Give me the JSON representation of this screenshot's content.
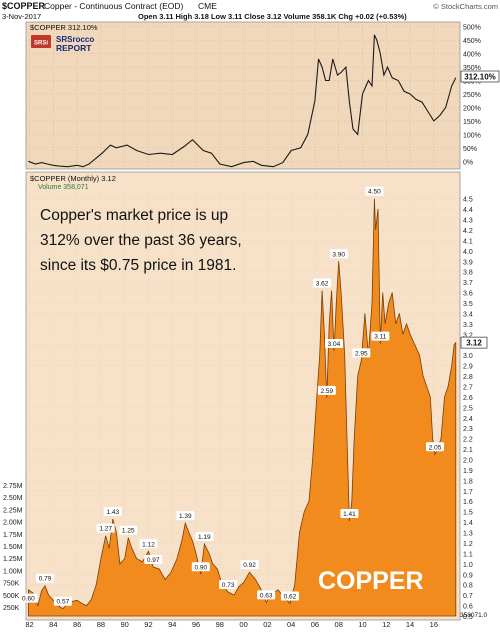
{
  "header": {
    "symbol": "$COPPER",
    "title": "Copper - Continuous Contract (EOD)",
    "exchange": "CME",
    "date": "3-Nov-2017",
    "ohlc": "Open 3.11  High 3.18  Low 3.11  Close 3.12  Volume 358.1K  Chg +0.02 (+0.53%)",
    "source": "© StockCharts.com"
  },
  "logo": {
    "abbr": "SRSi",
    "line1": "SRSrocco",
    "line2": "REPORT"
  },
  "annotation": {
    "line1": "Copper's market price is up",
    "line2": "312% over the past 36 years,",
    "line3": "since its $0.75 price in 1981."
  },
  "watermark": "COPPER",
  "colors": {
    "panel_top": "#f1d8bb",
    "panel_bottom": "#f7e2c9",
    "fill": "#f28b1e",
    "volume": "#d6690f",
    "line": "#1a1a1a"
  },
  "chart_data": [
    {
      "type": "line",
      "panel": "top",
      "legend": "$COPPER 312.10%",
      "unit": "percent change",
      "last_label": "312.10%",
      "y_ticks": [
        "500%",
        "450%",
        "400%",
        "350%",
        "300%",
        "250%",
        "200%",
        "150%",
        "100%",
        "50%",
        "0%"
      ],
      "ylim": [
        -25,
        510
      ],
      "x": [
        1981.9,
        1982.5,
        1983.0,
        1983.5,
        1984.0,
        1984.5,
        1985.2,
        1986.0,
        1986.5,
        1987.0,
        1987.7,
        1988.1,
        1988.8,
        1989.3,
        1990.2,
        1991.0,
        1992.0,
        1993.0,
        1994.0,
        1995.0,
        1995.7,
        1996.6,
        1997.3,
        1998.0,
        1999.0,
        2000.0,
        2000.8,
        2001.5,
        2002.5,
        2003.3,
        2004.0,
        2004.8,
        2005.4,
        2006.0,
        2006.3,
        2006.6,
        2006.9,
        2007.2,
        2007.5,
        2007.9,
        2008.2,
        2008.6,
        2008.9,
        2009.2,
        2009.6,
        2010.0,
        2010.5,
        2010.8,
        2011.0,
        2011.2,
        2011.5,
        2011.8,
        2012.1,
        2012.5,
        2013.0,
        2013.5,
        2014.0,
        2014.5,
        2015.0,
        2015.5,
        2016.0,
        2016.5,
        2017.0,
        2017.5,
        2017.85
      ],
      "y": [
        0,
        -10,
        -5,
        -10,
        -15,
        -18,
        -20,
        -15,
        -20,
        -10,
        15,
        30,
        60,
        50,
        60,
        40,
        25,
        30,
        25,
        55,
        80,
        40,
        30,
        -10,
        -20,
        -5,
        0,
        -15,
        -20,
        -5,
        40,
        50,
        100,
        225,
        380,
        350,
        300,
        300,
        380,
        320,
        330,
        350,
        220,
        120,
        100,
        250,
        300,
        280,
        470,
        450,
        400,
        320,
        350,
        310,
        300,
        260,
        250,
        230,
        220,
        185,
        150,
        170,
        200,
        280,
        310
      ]
    },
    {
      "type": "area",
      "panel": "bottom",
      "legend": "$COPPER (Monthly) 3.12",
      "volume_legend": "Volume 358,071",
      "x_ticks": [
        "82",
        "84",
        "86",
        "88",
        "90",
        "92",
        "94",
        "96",
        "98",
        "00",
        "02",
        "04",
        "06",
        "08",
        "10",
        "12",
        "14",
        "16"
      ],
      "x_tick_years": [
        1982,
        1984,
        1986,
        1988,
        1990,
        1992,
        1994,
        1996,
        1998,
        2000,
        2002,
        2004,
        2006,
        2008,
        2010,
        2012,
        2014,
        2016
      ],
      "xlim": [
        1981.7,
        2018.2
      ],
      "y_ticks": [
        "4.5",
        "4.4",
        "4.3",
        "4.2",
        "4.1",
        "4.0",
        "3.9",
        "3.8",
        "3.7",
        "3.6",
        "3.5",
        "3.4",
        "3.3",
        "3.2",
        "3.1",
        "3.0",
        "2.9",
        "2.8",
        "2.7",
        "2.6",
        "2.5",
        "2.4",
        "2.3",
        "2.2",
        "2.1",
        "2.0",
        "1.9",
        "1.8",
        "1.7",
        "1.6",
        "1.5",
        "1.4",
        "1.3",
        "1.2",
        "1.1",
        "1.0",
        "0.9",
        "0.8",
        "0.7",
        "0.6",
        "0.5"
      ],
      "ylim": [
        0.5,
        4.65
      ],
      "volume_ticks": [
        "2.75M",
        "2.50M",
        "2.25M",
        "2.00M",
        "1.75M",
        "1.50M",
        "1.25M",
        "1.00M",
        "750K",
        "500K",
        "250K"
      ],
      "last_label": "3.12",
      "volume_last_label": "358071.0",
      "x": [
        1981.9,
        1982.3,
        1982.7,
        1983.0,
        1983.3,
        1983.6,
        1984.0,
        1984.4,
        1984.8,
        1985.2,
        1985.6,
        1986.0,
        1986.4,
        1986.8,
        1987.2,
        1987.6,
        1988.0,
        1988.4,
        1988.7,
        1989.0,
        1989.3,
        1989.6,
        1990.0,
        1990.3,
        1990.6,
        1991.0,
        1991.5,
        1992.0,
        1992.4,
        1992.9,
        1993.4,
        1993.9,
        1994.4,
        1994.8,
        1995.1,
        1995.4,
        1995.7,
        1996.0,
        1996.4,
        1996.7,
        1997.1,
        1997.4,
        1997.8,
        1998.2,
        1998.7,
        1999.2,
        1999.6,
        2000.0,
        2000.5,
        2001.0,
        2001.5,
        2001.9,
        2002.4,
        2002.9,
        2003.4,
        2003.9,
        2004.3,
        2004.7,
        2005.1,
        2005.5,
        2005.8,
        2006.1,
        2006.4,
        2006.6,
        2006.8,
        2007.0,
        2007.2,
        2007.4,
        2007.6,
        2007.8,
        2008.0,
        2008.2,
        2008.5,
        2008.7,
        2008.9,
        2009.1,
        2009.3,
        2009.6,
        2009.9,
        2010.2,
        2010.5,
        2010.8,
        2011.0,
        2011.1,
        2011.3,
        2011.5,
        2011.7,
        2011.9,
        2012.2,
        2012.5,
        2012.8,
        2013.1,
        2013.4,
        2013.7,
        2014.0,
        2014.4,
        2014.8,
        2015.1,
        2015.4,
        2015.7,
        2015.9,
        2016.1,
        2016.3,
        2016.6,
        2016.9,
        2017.2,
        2017.5,
        2017.7,
        2017.85
      ],
      "y": [
        0.75,
        0.72,
        0.6,
        0.74,
        0.79,
        0.7,
        0.65,
        0.6,
        0.57,
        0.62,
        0.64,
        0.65,
        0.62,
        0.6,
        0.66,
        0.8,
        1.05,
        1.27,
        1.15,
        1.43,
        1.3,
        1.0,
        1.05,
        1.25,
        1.15,
        1.05,
        1.02,
        1.12,
        0.97,
        0.95,
        0.85,
        0.92,
        1.05,
        1.22,
        1.39,
        1.3,
        1.22,
        1.1,
        0.9,
        1.19,
        1.1,
        1.0,
        0.95,
        0.8,
        0.73,
        0.7,
        0.78,
        0.82,
        0.92,
        0.85,
        0.75,
        0.63,
        0.72,
        0.75,
        0.68,
        0.62,
        0.8,
        1.3,
        1.5,
        1.6,
        2.0,
        2.5,
        3.0,
        3.62,
        3.2,
        2.59,
        3.3,
        3.62,
        3.04,
        3.5,
        3.9,
        3.6,
        3.0,
        2.2,
        1.41,
        1.6,
        2.2,
        2.8,
        2.95,
        3.4,
        3.0,
        3.5,
        4.5,
        4.2,
        4.4,
        3.11,
        3.6,
        3.3,
        3.5,
        3.6,
        3.3,
        3.4,
        3.2,
        3.3,
        3.2,
        3.1,
        3.0,
        2.8,
        2.7,
        2.6,
        2.2,
        2.05,
        2.1,
        2.2,
        2.6,
        2.7,
        2.9,
        3.1,
        3.12
      ],
      "point_labels": [
        {
          "x": 1983.3,
          "y": 0.79,
          "text": "0.79"
        },
        {
          "x": 1981.9,
          "y": 0.6,
          "text": "0.60"
        },
        {
          "x": 1984.8,
          "y": 0.57,
          "text": "0.57"
        },
        {
          "x": 1988.4,
          "y": 1.27,
          "text": "1.27"
        },
        {
          "x": 1989.0,
          "y": 1.43,
          "text": "1.43"
        },
        {
          "x": 1990.3,
          "y": 1.25,
          "text": "1.25"
        },
        {
          "x": 1992.0,
          "y": 1.12,
          "text": "1.12"
        },
        {
          "x": 1992.4,
          "y": 0.97,
          "text": "0.97"
        },
        {
          "x": 1995.1,
          "y": 1.39,
          "text": "1.39"
        },
        {
          "x": 1996.7,
          "y": 1.19,
          "text": "1.19"
        },
        {
          "x": 1996.4,
          "y": 0.9,
          "text": "0.90"
        },
        {
          "x": 1998.7,
          "y": 0.73,
          "text": "0.73"
        },
        {
          "x": 2000.5,
          "y": 0.92,
          "text": "0.92"
        },
        {
          "x": 2001.9,
          "y": 0.63,
          "text": "0.63"
        },
        {
          "x": 2003.9,
          "y": 0.62,
          "text": "0.62"
        },
        {
          "x": 2006.6,
          "y": 3.62,
          "text": "3.62"
        },
        {
          "x": 2007.0,
          "y": 2.59,
          "text": "2.59"
        },
        {
          "x": 2007.6,
          "y": 3.04,
          "text": "3.04"
        },
        {
          "x": 2008.0,
          "y": 3.9,
          "text": "3.90"
        },
        {
          "x": 2008.9,
          "y": 1.41,
          "text": "1.41"
        },
        {
          "x": 2009.9,
          "y": 2.95,
          "text": "2.95"
        },
        {
          "x": 2011.0,
          "y": 4.5,
          "text": "4.50"
        },
        {
          "x": 2011.5,
          "y": 3.11,
          "text": "3.11"
        },
        {
          "x": 2016.1,
          "y": 2.05,
          "text": "2.05"
        }
      ]
    }
  ]
}
